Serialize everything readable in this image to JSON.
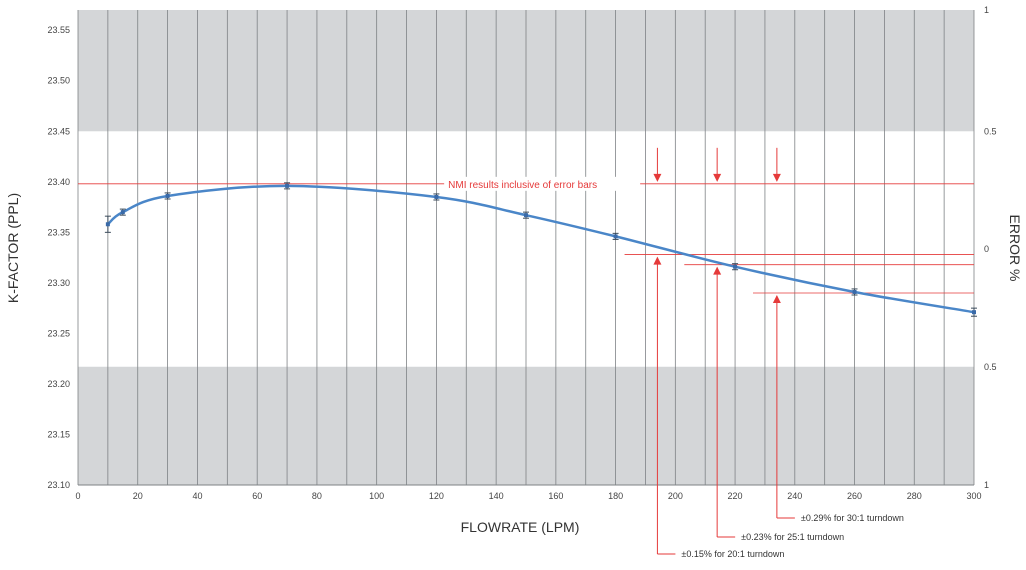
{
  "chart_data": {
    "type": "line",
    "xlabel": "FLOWRATE (LPM)",
    "ylabel": "K-FACTOR (PPL)",
    "y2label": "ERROR %",
    "xlim": [
      0,
      300
    ],
    "ylim": [
      23.1,
      23.57
    ],
    "x_ticks": [
      "0",
      "20",
      "40",
      "60",
      "80",
      "100",
      "120",
      "140",
      "160",
      "180",
      "200",
      "220",
      "240",
      "260",
      "280",
      "300"
    ],
    "y_ticks": [
      "23.10",
      "23.15",
      "23.20",
      "23.25",
      "23.30",
      "23.35",
      "23.40",
      "23.45",
      "23.50",
      "23.55"
    ],
    "y2_ticks": [
      "1",
      "0.5",
      "0",
      "0.5",
      "1"
    ],
    "grid": true,
    "background_bands": [
      {
        "from": 23.1,
        "to": 23.217,
        "color": "#d4d6d8"
      },
      {
        "from": 23.45,
        "to": 23.57,
        "color": "#d4d6d8"
      }
    ],
    "series": [
      {
        "color": "#4a86c8",
        "x": [
          10,
          15,
          30,
          70,
          120,
          150,
          180,
          220,
          260,
          300
        ],
        "y": [
          23.358,
          23.37,
          23.386,
          23.396,
          23.385,
          23.367,
          23.346,
          23.316,
          23.291,
          23.271
        ],
        "errors": [
          0.008,
          0.003,
          0.003,
          0.003,
          0.003,
          0.003,
          0.003,
          0.003,
          0.003,
          0.004
        ]
      }
    ],
    "annotations": {
      "nmi_label": "NMI results inclusive of error bars",
      "nmi_y": 23.398,
      "arrow_x": [
        194,
        214,
        234
      ],
      "turndowns": [
        {
          "label": "±0.15% for 20:1 turndown",
          "y": 23.328,
          "x_start": 183
        },
        {
          "label": "±0.23% for 25:1 turndown",
          "y": 23.318,
          "x_start": 203
        },
        {
          "label": "±0.29% for 30:1 turndown",
          "y": 23.29,
          "x_start": 226
        }
      ],
      "color": "#e53a3a"
    }
  }
}
